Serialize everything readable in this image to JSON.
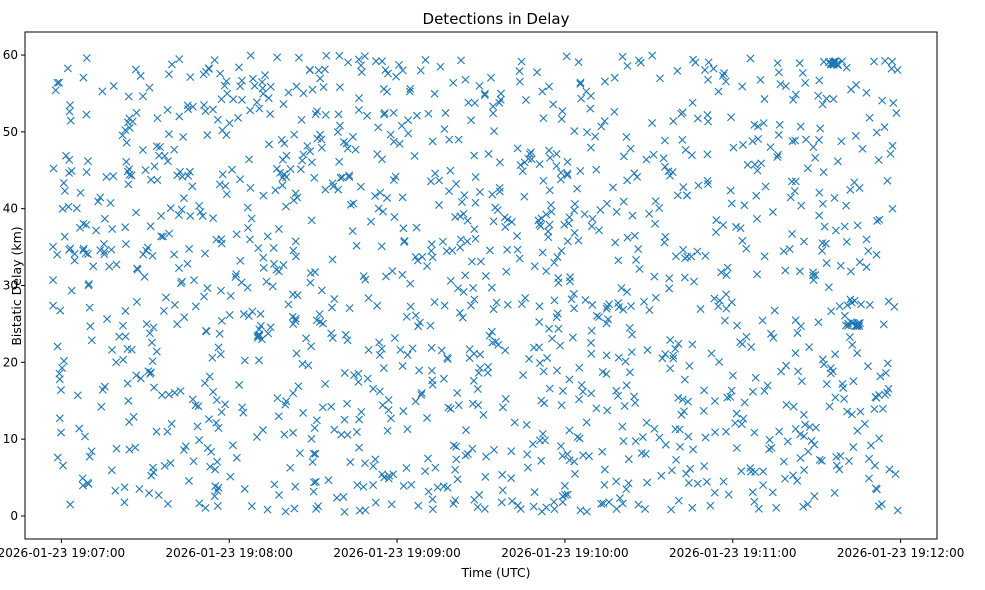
{
  "chart_data": {
    "type": "scatter",
    "title": "Detections in Delay",
    "xlabel": "Time (UTC)",
    "ylabel": "Bistatic Delay (km)",
    "marker": "x",
    "color": "#1f77b4",
    "grid": false,
    "x_axis_type": "time",
    "x_ticks": [
      "2026-01-23 19:07:00",
      "2026-01-23 19:08:00",
      "2026-01-23 19:09:00",
      "2026-01-23 19:10:00",
      "2026-01-23 19:11:00",
      "2026-01-23 19:12:00"
    ],
    "xlim": [
      "2026-01-23 19:06:47",
      "2026-01-23 19:12:13"
    ],
    "y_ticks": [
      0,
      10,
      20,
      30,
      40,
      50,
      60
    ],
    "ylim": [
      -3,
      63
    ],
    "x_range": [
      "2026-01-23 19:06:57",
      "2026-01-23 19:11:59"
    ],
    "y_range": [
      0.5,
      60
    ],
    "point_count": 1400,
    "visible_clusters": [
      {
        "x": "2026-01-23 19:11:43",
        "y": 25
      },
      {
        "x": "2026-01-23 19:11:35",
        "y": 59
      }
    ]
  }
}
